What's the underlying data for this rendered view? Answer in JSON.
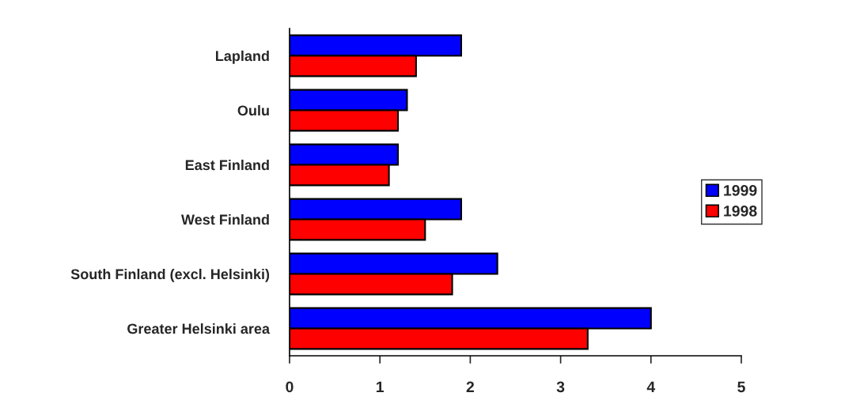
{
  "chart_data": {
    "type": "bar",
    "orientation": "horizontal",
    "categories": [
      "Lapland",
      "Oulu",
      "East Finland",
      "West Finland",
      "South Finland (excl. Helsinki)",
      "Greater Helsinki area"
    ],
    "series": [
      {
        "name": "1999",
        "color": "#0000ff",
        "values": [
          1.9,
          1.3,
          1.2,
          1.9,
          2.3,
          4.0
        ]
      },
      {
        "name": "1998",
        "color": "#ff0000",
        "values": [
          1.4,
          1.2,
          1.1,
          1.5,
          1.8,
          3.3
        ]
      }
    ],
    "xlim": [
      0,
      5
    ],
    "xticks": [
      0,
      1,
      2,
      3,
      4,
      5
    ],
    "grid": false,
    "legend": "right"
  }
}
